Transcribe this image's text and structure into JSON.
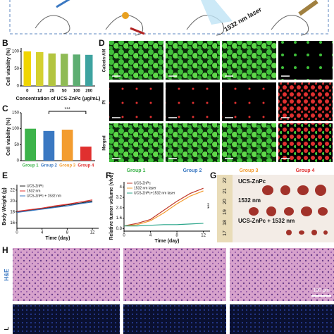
{
  "header": {
    "laser_label": "1532 nm laser"
  },
  "panel_labels": [
    "B",
    "C",
    "D",
    "E",
    "F",
    "G",
    "H"
  ],
  "chart_data": [
    {
      "type": "bar",
      "ylabel": "Cell viability (%)",
      "xlabel": "Concentration of UCS-ZnPc (μg/mL)",
      "categories": [
        "0",
        "12",
        "25",
        "50",
        "100",
        "200"
      ],
      "values": [
        100,
        98,
        94,
        93,
        91,
        90
      ],
      "colors": [
        "#f0d500",
        "#d4d030",
        "#b3c540",
        "#8fbb55",
        "#5eae72",
        "#3ea3a0"
      ],
      "ylim": [
        0,
        110
      ],
      "yticks": [
        0,
        50,
        100
      ]
    },
    {
      "type": "bar",
      "ylabel": "Cell viability (%)",
      "categories": [
        "Group 1",
        "Group 2",
        "Group 3",
        "Group 4"
      ],
      "values": [
        100,
        93,
        97,
        44
      ],
      "colors": [
        "#3cb34a",
        "#3a78c2",
        "#f39c2f",
        "#e0302f"
      ],
      "ylim": [
        0,
        150
      ],
      "yticks": [
        0,
        50,
        100,
        150
      ],
      "annotation": "***"
    },
    {
      "type": "line",
      "ylabel": "Body Weight (g)",
      "xlabel": "Time (day)",
      "x": [
        0,
        2,
        4,
        6,
        8,
        10,
        12
      ],
      "series": [
        {
          "name": "UCS-ZnPc",
          "color": "#222222",
          "values": [
            18.0,
            18.3,
            18.6,
            18.9,
            19.3,
            19.6,
            20.0
          ]
        },
        {
          "name": "1532 nm",
          "color": "#e0302f",
          "values": [
            18.1,
            18.4,
            18.7,
            19.1,
            19.4,
            19.8,
            20.2
          ]
        },
        {
          "name": "UCS-ZnPc + 1532 nm",
          "color": "#3a78c2",
          "values": [
            17.9,
            18.2,
            18.5,
            18.8,
            19.1,
            19.5,
            19.8
          ]
        }
      ],
      "xlim": [
        0,
        13
      ],
      "xticks": [
        0,
        4,
        8,
        12
      ],
      "ylim": [
        15,
        23
      ],
      "yticks": [
        16,
        18,
        20,
        22
      ]
    },
    {
      "type": "line",
      "ylabel": "Relative tumor volume (v/v0)",
      "xlabel": "Time (day)",
      "x": [
        0,
        2,
        4,
        6,
        8,
        10,
        12
      ],
      "series": [
        {
          "name": "UCS-ZnPc",
          "color": "#c0392b",
          "values": [
            1.0,
            1.2,
            1.5,
            2.2,
            2.9,
            3.5,
            3.9
          ]
        },
        {
          "name": "1532 nm laser",
          "color": "#f39c2f",
          "values": [
            1.0,
            1.1,
            1.4,
            2.0,
            2.7,
            3.3,
            3.7
          ]
        },
        {
          "name": "UCS-ZnPc+1532 nm laser",
          "color": "#2aa58a",
          "values": [
            1.0,
            1.0,
            1.05,
            1.1,
            1.1,
            1.15,
            1.2
          ]
        }
      ],
      "xlim": [
        0,
        13
      ],
      "xticks": [
        0,
        4,
        8,
        12
      ],
      "ylim": [
        0.6,
        4.4
      ],
      "yticks": [
        0.8,
        1.6,
        2.4,
        3.2,
        4.0
      ],
      "annotation": "***"
    }
  ],
  "microscopy": {
    "row_labels": [
      "Calcein-AM",
      "PI",
      "Merged"
    ],
    "group_labels": [
      "Group 1",
      "Group 2",
      "Group 3",
      "Group 4"
    ],
    "group_colors": [
      "#3cb34a",
      "#3a78c2",
      "#f39c2f",
      "#e0302f"
    ]
  },
  "tumor_photo": {
    "labels": [
      "UCS-ZnPc",
      "1532 nm",
      "UCS-ZnPc + 1532 nm"
    ],
    "ruler": [
      "22",
      "21",
      "20",
      "19",
      "18",
      "17"
    ]
  },
  "histology": {
    "row_labels": [
      "H&E",
      "L"
    ],
    "scale_bar": "100 μm"
  }
}
